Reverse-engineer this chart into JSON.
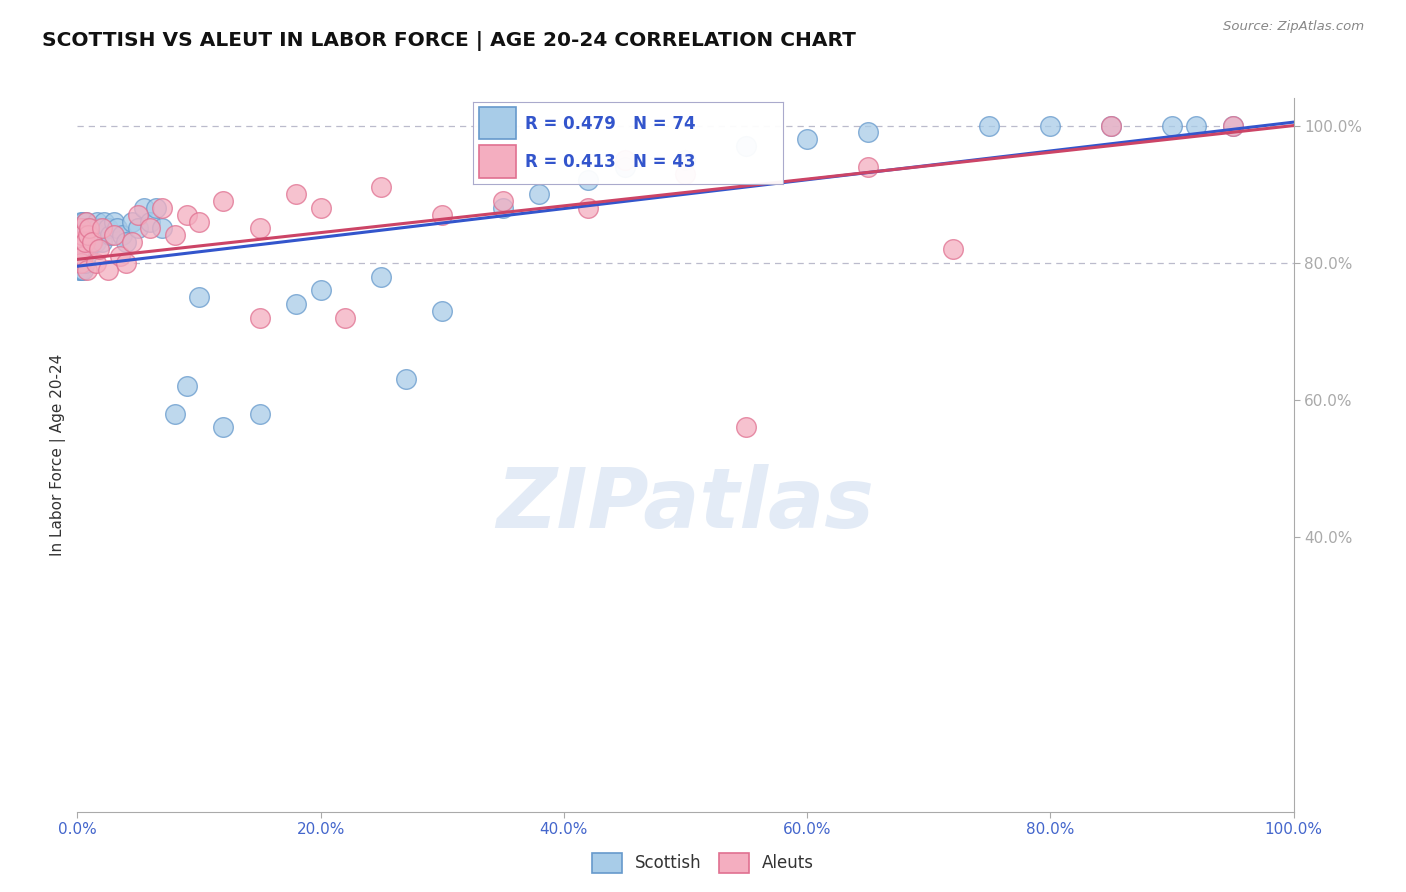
{
  "title": "SCOTTISH VS ALEUT IN LABOR FORCE | AGE 20-24 CORRELATION CHART",
  "source_text": "Source: ZipAtlas.com",
  "ylabel": "In Labor Force | Age 20-24",
  "xlim": [
    0,
    1
  ],
  "ylim": [
    0,
    1.04
  ],
  "xtick_positions": [
    0.0,
    0.2,
    0.4,
    0.6,
    0.8,
    1.0
  ],
  "xtick_labels": [
    "0.0%",
    "20.0%",
    "40.0%",
    "60.0%",
    "80.0%",
    "100.0%"
  ],
  "ytick_positions": [
    0.4,
    0.6,
    0.8,
    1.0
  ],
  "ytick_labels": [
    "40.0%",
    "60.0%",
    "80.0%",
    "100.0%"
  ],
  "scottish_color": "#a8cce8",
  "aleut_color": "#f4aec0",
  "scottish_edge": "#6699cc",
  "aleut_edge": "#e07090",
  "trend_blue": "#3355cc",
  "trend_pink": "#cc4466",
  "R_scottish": 0.479,
  "N_scottish": 74,
  "R_aleut": 0.413,
  "N_aleut": 43,
  "axis_color": "#4466cc",
  "grid_color": "#bbbbcc",
  "legend_box_color": "#aaaacc",
  "trend_blue_intercept": 0.795,
  "trend_blue_slope": 0.21,
  "trend_pink_intercept": 0.805,
  "trend_pink_slope": 0.195,
  "scottish_x": [
    0.001,
    0.001,
    0.002,
    0.002,
    0.002,
    0.003,
    0.003,
    0.003,
    0.003,
    0.004,
    0.004,
    0.004,
    0.005,
    0.005,
    0.005,
    0.005,
    0.006,
    0.006,
    0.006,
    0.007,
    0.007,
    0.007,
    0.008,
    0.008,
    0.009,
    0.009,
    0.01,
    0.01,
    0.011,
    0.012,
    0.013,
    0.014,
    0.015,
    0.016,
    0.017,
    0.018,
    0.02,
    0.022,
    0.025,
    0.027,
    0.03,
    0.033,
    0.037,
    0.04,
    0.045,
    0.05,
    0.055,
    0.06,
    0.065,
    0.07,
    0.08,
    0.09,
    0.1,
    0.12,
    0.15,
    0.18,
    0.2,
    0.25,
    0.27,
    0.3,
    0.35,
    0.38,
    0.42,
    0.45,
    0.5,
    0.55,
    0.6,
    0.65,
    0.75,
    0.8,
    0.85,
    0.9,
    0.92,
    0.95
  ],
  "scottish_y": [
    0.83,
    0.79,
    0.82,
    0.85,
    0.8,
    0.84,
    0.81,
    0.86,
    0.79,
    0.83,
    0.85,
    0.8,
    0.84,
    0.81,
    0.86,
    0.79,
    0.83,
    0.85,
    0.8,
    0.84,
    0.81,
    0.86,
    0.83,
    0.85,
    0.82,
    0.84,
    0.83,
    0.85,
    0.84,
    0.83,
    0.85,
    0.84,
    0.83,
    0.86,
    0.85,
    0.84,
    0.83,
    0.86,
    0.85,
    0.84,
    0.86,
    0.85,
    0.84,
    0.83,
    0.86,
    0.85,
    0.88,
    0.86,
    0.88,
    0.85,
    0.58,
    0.62,
    0.75,
    0.56,
    0.58,
    0.74,
    0.76,
    0.78,
    0.63,
    0.73,
    0.88,
    0.9,
    0.92,
    0.94,
    0.95,
    0.97,
    0.98,
    0.99,
    1.0,
    1.0,
    1.0,
    1.0,
    1.0,
    1.0
  ],
  "aleut_x": [
    0.001,
    0.002,
    0.003,
    0.003,
    0.004,
    0.005,
    0.006,
    0.007,
    0.008,
    0.009,
    0.01,
    0.012,
    0.015,
    0.018,
    0.02,
    0.025,
    0.03,
    0.035,
    0.04,
    0.045,
    0.05,
    0.06,
    0.07,
    0.08,
    0.09,
    0.1,
    0.12,
    0.15,
    0.15,
    0.18,
    0.2,
    0.22,
    0.25,
    0.3,
    0.35,
    0.42,
    0.45,
    0.5,
    0.55,
    0.65,
    0.72,
    0.85,
    0.95
  ],
  "aleut_y": [
    0.83,
    0.82,
    0.85,
    0.8,
    0.84,
    0.81,
    0.83,
    0.86,
    0.79,
    0.84,
    0.85,
    0.83,
    0.8,
    0.82,
    0.85,
    0.79,
    0.84,
    0.81,
    0.8,
    0.83,
    0.87,
    0.85,
    0.88,
    0.84,
    0.87,
    0.86,
    0.89,
    0.85,
    0.72,
    0.9,
    0.88,
    0.72,
    0.91,
    0.87,
    0.89,
    0.88,
    0.95,
    0.93,
    0.56,
    0.94,
    0.82,
    1.0,
    1.0
  ],
  "scottish_size": 200,
  "aleut_size": 200,
  "watermark_text": "ZIPatlas",
  "watermark_fontsize": 60,
  "watermark_color": "#c8d8ee",
  "watermark_alpha": 0.5
}
